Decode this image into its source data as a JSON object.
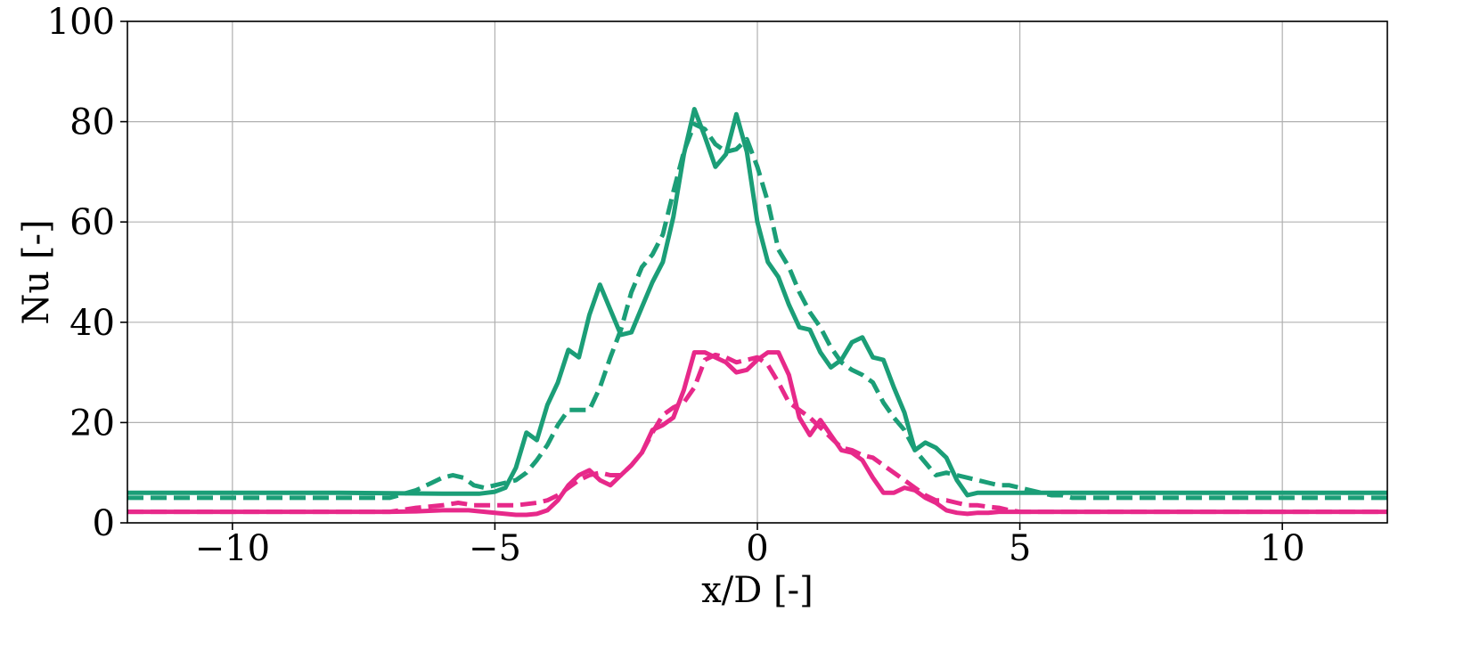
{
  "chart_data": {
    "type": "line",
    "title": "",
    "xlabel": "x/D [-]",
    "ylabel": "Nu [-]",
    "xlim": [
      -12,
      12
    ],
    "ylim": [
      0,
      100
    ],
    "xticks": [
      -10,
      -5,
      0,
      5,
      10
    ],
    "xtick_labels": [
      "−10",
      "−5",
      "0",
      "5",
      "10"
    ],
    "yticks": [
      0,
      20,
      40,
      60,
      80,
      100
    ],
    "ytick_labels": [
      "0",
      "20",
      "40",
      "60",
      "80",
      "100"
    ],
    "grid": true,
    "legend": "none",
    "series": [
      {
        "color": "#1b9e77",
        "dash": "solid",
        "x": [
          -12,
          -8,
          -6,
          -5.3,
          -5.0,
          -4.8,
          -4.6,
          -4.4,
          -4.2,
          -4.0,
          -3.8,
          -3.6,
          -3.4,
          -3.2,
          -3.0,
          -2.8,
          -2.6,
          -2.4,
          -2.2,
          -2.0,
          -1.8,
          -1.6,
          -1.4,
          -1.2,
          -1.0,
          -0.8,
          -0.6,
          -0.4,
          -0.2,
          0.0,
          0.2,
          0.4,
          0.6,
          0.8,
          1.0,
          1.2,
          1.4,
          1.6,
          1.8,
          2.0,
          2.2,
          2.4,
          2.6,
          2.8,
          3.0,
          3.2,
          3.4,
          3.6,
          3.8,
          4.0,
          4.2,
          4.4,
          4.6,
          4.8,
          5.0,
          5.2,
          5.4,
          5.6,
          5.8,
          6.2,
          7,
          9,
          12
        ],
        "y": [
          6,
          6,
          5.8,
          5.8,
          6.2,
          7,
          11,
          18,
          16.5,
          23.5,
          28,
          34.5,
          33,
          41.5,
          47.5,
          42.5,
          37.5,
          38,
          43,
          48,
          52,
          61,
          73.5,
          82.5,
          77,
          71,
          73.5,
          81.5,
          74,
          60,
          52,
          49,
          43.5,
          39,
          38.5,
          34,
          31,
          32.5,
          36,
          37,
          33,
          32.5,
          27,
          22,
          14.5,
          16,
          15,
          13,
          8.5,
          5.5,
          6,
          6,
          6,
          6,
          6,
          6,
          6,
          6,
          6,
          6,
          6,
          6,
          6
        ]
      },
      {
        "color": "#1b9e77",
        "dash": "dashed",
        "x": [
          -12,
          -8,
          -7,
          -6.5,
          -6.2,
          -6.0,
          -5.8,
          -5.6,
          -5.4,
          -5.2,
          -5.0,
          -4.8,
          -4.6,
          -4.4,
          -4.2,
          -4.0,
          -3.8,
          -3.6,
          -3.4,
          -3.2,
          -3.0,
          -2.8,
          -2.6,
          -2.4,
          -2.2,
          -2.0,
          -1.8,
          -1.6,
          -1.4,
          -1.2,
          -1.0,
          -0.8,
          -0.6,
          -0.4,
          -0.2,
          0.0,
          0.2,
          0.4,
          0.6,
          0.8,
          1.0,
          1.2,
          1.4,
          1.6,
          1.8,
          2.0,
          2.2,
          2.4,
          2.6,
          2.8,
          3.0,
          3.2,
          3.4,
          3.6,
          3.8,
          4.0,
          4.2,
          4.4,
          4.6,
          4.8,
          5.0,
          5.2,
          5.4,
          5.6,
          5.8,
          6.0,
          6.5,
          7,
          8,
          10,
          12
        ],
        "y": [
          5,
          5,
          5,
          6.5,
          8,
          9,
          9.5,
          9,
          7.5,
          7,
          7.5,
          8,
          8.5,
          10,
          12.5,
          15.5,
          19.5,
          22.5,
          22.5,
          22.5,
          27,
          33,
          38.5,
          46,
          51,
          53.5,
          57.5,
          66,
          74,
          79.5,
          78.5,
          75.5,
          74,
          74.5,
          76.5,
          71,
          64,
          54.5,
          51,
          46,
          42,
          39,
          35,
          32,
          30.5,
          29.5,
          28,
          24,
          21,
          18.5,
          14.5,
          12,
          9.5,
          10,
          9.5,
          9,
          8.5,
          8,
          7.5,
          7.5,
          7,
          6.5,
          6,
          5.5,
          5.5,
          5,
          5,
          5,
          5,
          5,
          5
        ]
      },
      {
        "color": "#e7298a",
        "dash": "solid",
        "x": [
          -12,
          -7,
          -6.5,
          -6.0,
          -5.5,
          -5.0,
          -4.6,
          -4.4,
          -4.2,
          -4.0,
          -3.8,
          -3.6,
          -3.4,
          -3.2,
          -3.0,
          -2.8,
          -2.6,
          -2.4,
          -2.2,
          -2.0,
          -1.8,
          -1.6,
          -1.4,
          -1.2,
          -1.0,
          -0.8,
          -0.6,
          -0.4,
          -0.2,
          0.0,
          0.2,
          0.4,
          0.6,
          0.8,
          1.0,
          1.2,
          1.4,
          1.6,
          1.8,
          2.0,
          2.2,
          2.4,
          2.6,
          2.8,
          3.0,
          3.2,
          3.4,
          3.6,
          3.8,
          4.0,
          4.2,
          4.4,
          4.6,
          4.8,
          5.0,
          5.2,
          5.4,
          5.6,
          6.0,
          7,
          9,
          12
        ],
        "y": [
          2.2,
          2.2,
          2.3,
          2.5,
          2.5,
          2.0,
          1.6,
          1.6,
          1.8,
          2.5,
          4.5,
          7.5,
          9.5,
          10.5,
          8.5,
          7.5,
          9.5,
          11.5,
          14,
          18.5,
          19.5,
          21,
          26.5,
          34,
          34,
          33,
          32,
          30,
          30.5,
          32.5,
          34,
          34,
          29.5,
          21,
          17.5,
          20.5,
          17.5,
          14.5,
          14,
          12.5,
          9,
          6,
          6,
          7,
          6.5,
          5,
          4,
          2.5,
          2,
          1.8,
          2.0,
          2.0,
          2.2,
          2.2,
          2.2,
          2.2,
          2.2,
          2.2,
          2.2,
          2.2,
          2.2,
          2.2
        ]
      },
      {
        "color": "#e7298a",
        "dash": "dashed",
        "x": [
          -12,
          -7,
          -6.5,
          -6.0,
          -5.7,
          -5.4,
          -5.0,
          -4.6,
          -4.2,
          -4.0,
          -3.8,
          -3.6,
          -3.4,
          -3.2,
          -3.0,
          -2.8,
          -2.6,
          -2.4,
          -2.2,
          -2.0,
          -1.8,
          -1.6,
          -1.4,
          -1.2,
          -1.0,
          -0.8,
          -0.6,
          -0.4,
          -0.2,
          0.0,
          0.2,
          0.4,
          0.6,
          0.8,
          1.0,
          1.2,
          1.4,
          1.6,
          1.8,
          2.0,
          2.2,
          2.4,
          2.6,
          2.8,
          3.0,
          3.2,
          3.4,
          3.6,
          3.8,
          4.0,
          4.2,
          4.4,
          4.6,
          4.8,
          5.0,
          5.4,
          5.8,
          6.2,
          7,
          9,
          12
        ],
        "y": [
          2.2,
          2.2,
          3,
          3.5,
          4,
          3.5,
          3.5,
          3.5,
          4,
          4.5,
          5.5,
          7,
          8.5,
          9.5,
          10,
          9.5,
          9.5,
          11.5,
          14,
          18,
          21.5,
          23,
          24,
          27,
          32.5,
          33.5,
          33,
          32,
          32.5,
          33,
          31.5,
          28,
          24,
          22.5,
          21,
          19,
          17,
          15,
          14.5,
          13.5,
          13,
          11.5,
          10,
          8.5,
          7,
          5.5,
          4.5,
          4.5,
          4,
          3.5,
          3.5,
          3.2,
          3,
          2.5,
          2.2,
          2.2,
          2.2,
          2.2,
          2.2,
          2.2,
          2.2
        ]
      }
    ]
  }
}
